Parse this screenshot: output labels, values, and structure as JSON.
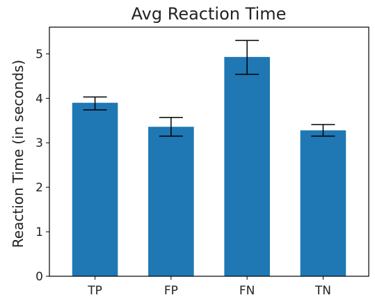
{
  "chart_data": {
    "type": "bar",
    "title": "Avg Reaction Time",
    "xlabel": "",
    "ylabel": "Reaction Time (in seconds)",
    "categories": [
      "TP",
      "FP",
      "FN",
      "TN"
    ],
    "values": [
      3.9,
      3.36,
      4.93,
      3.28
    ],
    "error_low": [
      3.74,
      3.15,
      4.54,
      3.15
    ],
    "error_high": [
      4.03,
      3.57,
      5.3,
      3.41
    ],
    "ylim": [
      0,
      5.6
    ],
    "yticks": [
      0,
      1,
      2,
      3,
      4,
      5
    ],
    "grid": false,
    "bar_color": "#1f77b4",
    "error_color": "#000000"
  }
}
